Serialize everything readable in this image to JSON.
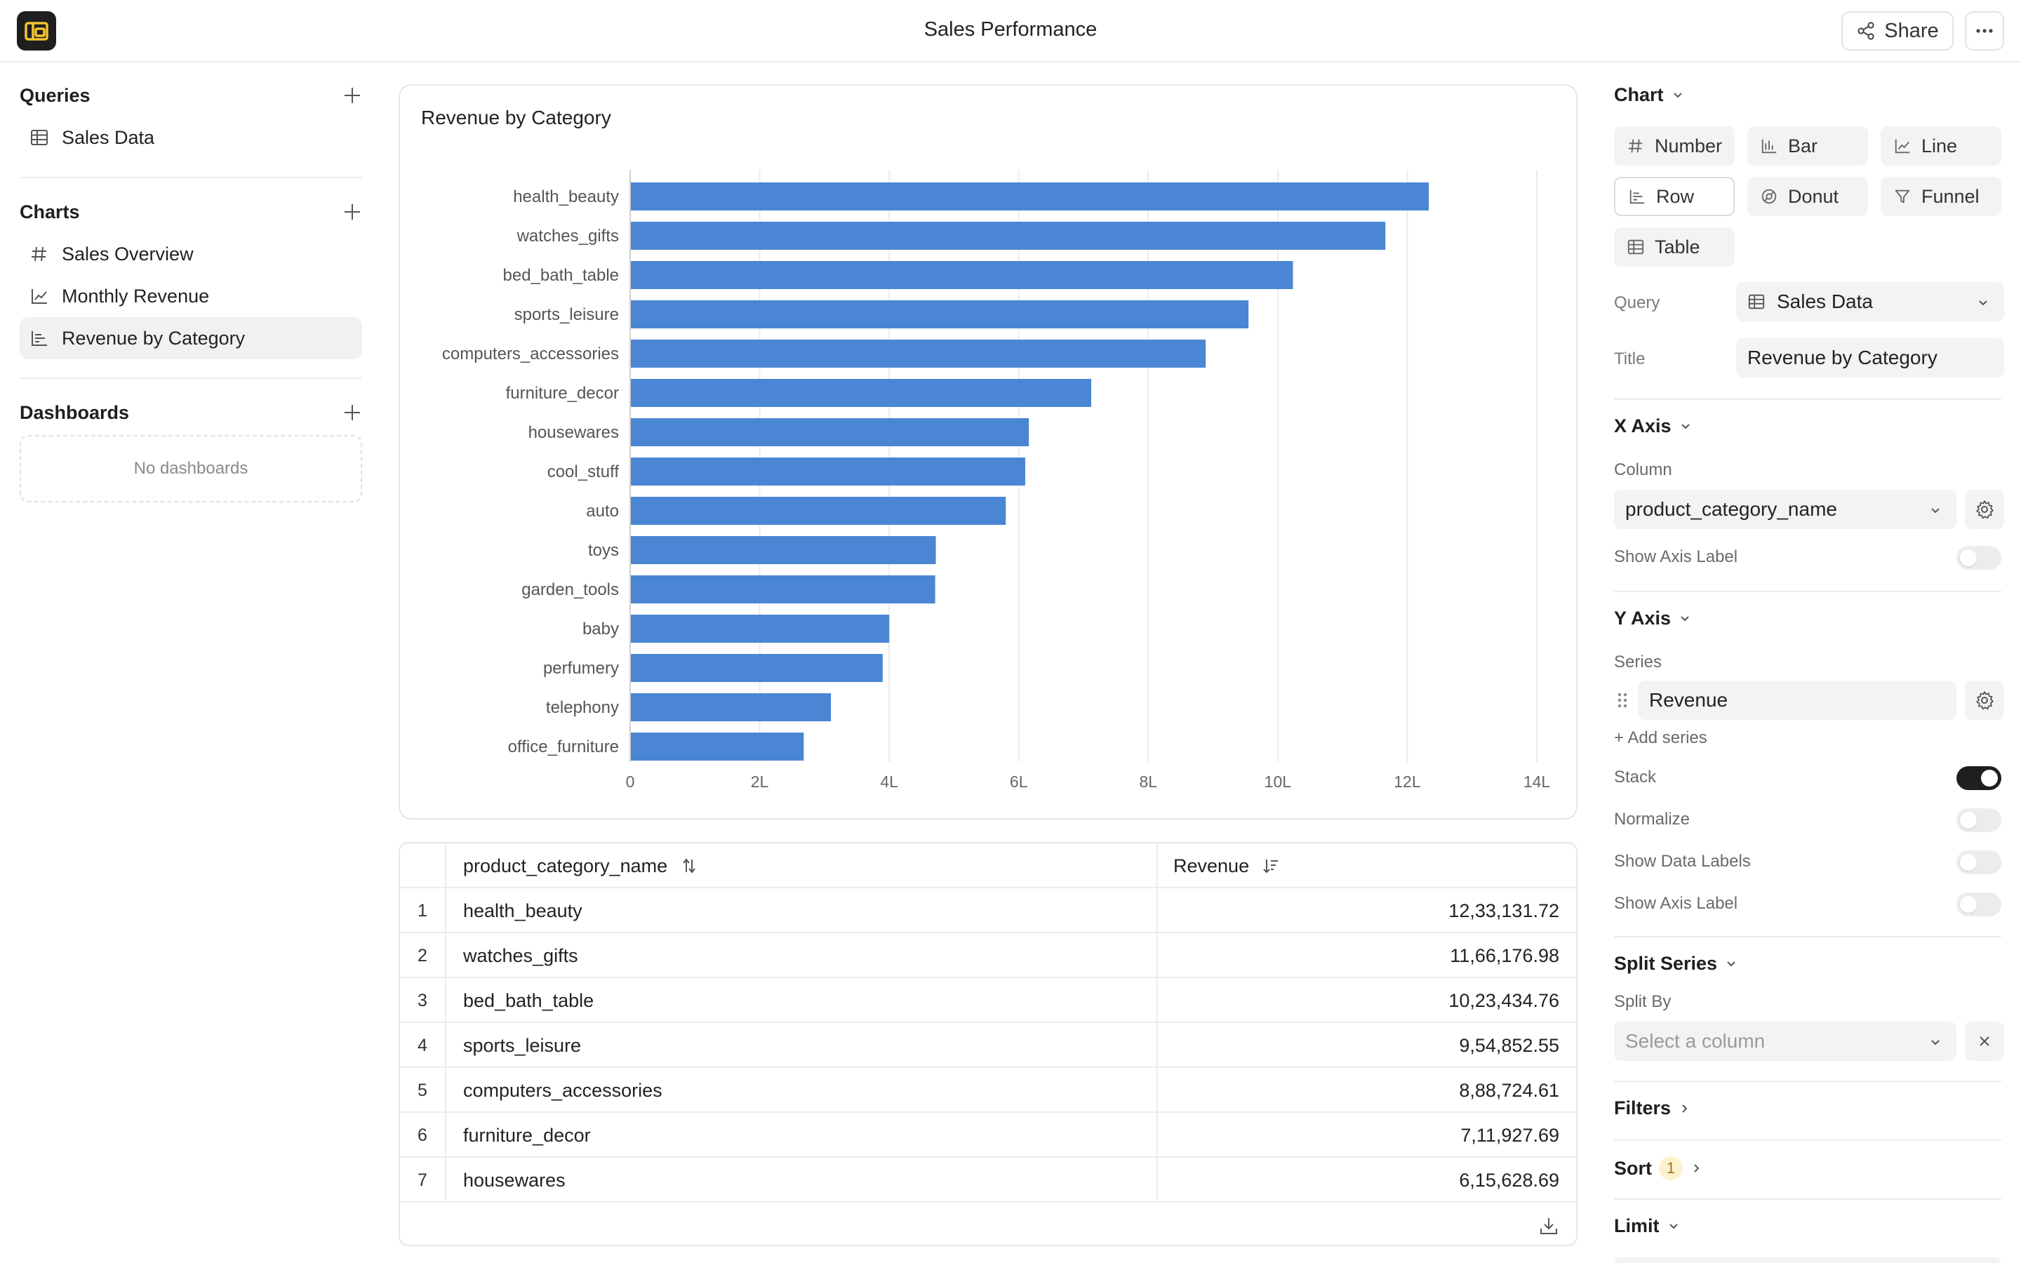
{
  "header": {
    "title": "Sales Performance",
    "share_label": "Share"
  },
  "sidebar": {
    "queries": {
      "title": "Queries",
      "items": [
        {
          "label": "Sales Data",
          "icon": "table-icon"
        }
      ]
    },
    "charts": {
      "title": "Charts",
      "items": [
        {
          "label": "Sales Overview",
          "icon": "hash-icon"
        },
        {
          "label": "Monthly Revenue",
          "icon": "line-chart-icon"
        },
        {
          "label": "Revenue by Category",
          "icon": "row-chart-icon",
          "active": true
        }
      ]
    },
    "dashboards": {
      "title": "Dashboards",
      "empty_text": "No dashboards"
    }
  },
  "chart_card": {
    "title": "Revenue by Category"
  },
  "chart_data": {
    "type": "bar",
    "orientation": "horizontal",
    "title": "Revenue by Category",
    "categories": [
      "health_beauty",
      "watches_gifts",
      "bed_bath_table",
      "sports_leisure",
      "computers_accessories",
      "furniture_decor",
      "housewares",
      "cool_stuff",
      "auto",
      "toys",
      "garden_tools",
      "baby",
      "perfumery",
      "telephony",
      "office_furniture"
    ],
    "values": [
      1233131.72,
      1166176.98,
      1023434.76,
      954852.55,
      888724.61,
      711927.69,
      615628.69,
      610000,
      580000,
      472000,
      471000,
      400000,
      390000,
      310000,
      268000
    ],
    "xlim": [
      0,
      1400000
    ],
    "xticks": [
      0,
      200000,
      400000,
      600000,
      800000,
      1000000,
      1200000,
      1400000
    ],
    "xtick_labels": [
      "0",
      "2L",
      "4L",
      "6L",
      "8L",
      "10L",
      "12L",
      "14L"
    ],
    "color": "#4a86d4",
    "grid": true
  },
  "table": {
    "columns": [
      "product_category_name",
      "Revenue"
    ],
    "rows": [
      {
        "idx": "1",
        "category": "health_beauty",
        "revenue": "12,33,131.72"
      },
      {
        "idx": "2",
        "category": "watches_gifts",
        "revenue": "11,66,176.98"
      },
      {
        "idx": "3",
        "category": "bed_bath_table",
        "revenue": "10,23,434.76"
      },
      {
        "idx": "4",
        "category": "sports_leisure",
        "revenue": "9,54,852.55"
      },
      {
        "idx": "5",
        "category": "computers_accessories",
        "revenue": "8,88,724.61"
      },
      {
        "idx": "6",
        "category": "furniture_decor",
        "revenue": "7,11,927.69"
      },
      {
        "idx": "7",
        "category": "housewares",
        "revenue": "6,15,628.69"
      }
    ]
  },
  "panel": {
    "chart_section": "Chart",
    "types": [
      "Number",
      "Bar",
      "Line",
      "Row",
      "Donut",
      "Funnel",
      "Table"
    ],
    "selected_type": "Row",
    "query_label": "Query",
    "query_value": "Sales Data",
    "title_label": "Title",
    "title_value": "Revenue by Category",
    "x_axis": {
      "section": "X Axis",
      "column_label": "Column",
      "column_value": "product_category_name",
      "show_axis_label": "Show Axis Label",
      "show_axis_label_on": false
    },
    "y_axis": {
      "section": "Y Axis",
      "series_label": "Series",
      "series_value": "Revenue",
      "add_series": "+ Add series",
      "stack": "Stack",
      "stack_on": true,
      "normalize": "Normalize",
      "normalize_on": false,
      "show_data_labels": "Show Data Labels",
      "show_data_labels_on": false,
      "show_axis_label": "Show Axis Label",
      "show_axis_label_on": false
    },
    "split_series": {
      "section": "Split Series",
      "split_by_label": "Split By",
      "placeholder": "Select a column"
    },
    "filters": "Filters",
    "sort": "Sort",
    "sort_count": "1",
    "limit": "Limit"
  }
}
